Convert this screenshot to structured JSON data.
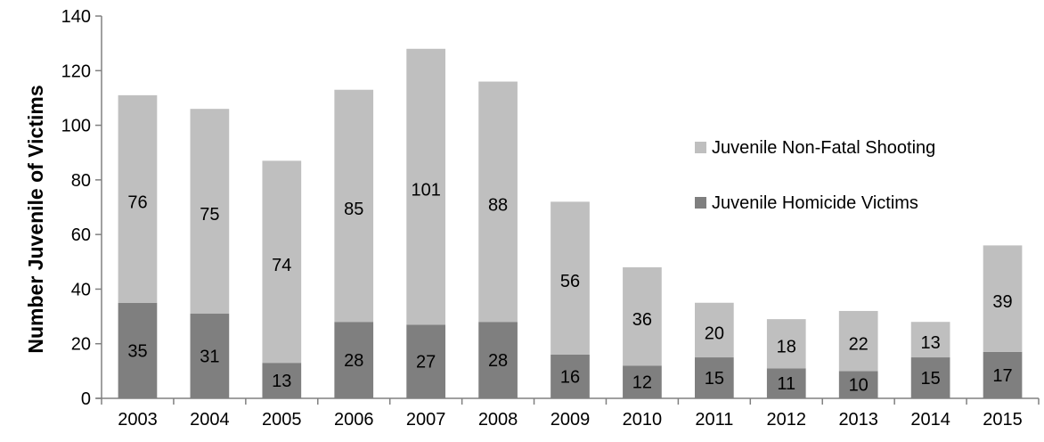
{
  "chart_data": {
    "type": "bar",
    "stacked": true,
    "categories": [
      "2003",
      "2004",
      "2005",
      "2006",
      "2007",
      "2008",
      "2009",
      "2010",
      "2011",
      "2012",
      "2013",
      "2014",
      "2015"
    ],
    "series": [
      {
        "name": "Juvenile Homicide Victims",
        "color": "#7f7f7f",
        "values": [
          35,
          31,
          13,
          28,
          27,
          28,
          16,
          12,
          15,
          11,
          10,
          15,
          17
        ]
      },
      {
        "name": "Juvenile Non-Fatal Shooting",
        "color": "#bfbfbf",
        "values": [
          76,
          75,
          74,
          85,
          101,
          88,
          56,
          36,
          20,
          18,
          22,
          13,
          39
        ]
      }
    ],
    "legend_order": [
      "Juvenile Non-Fatal Shooting",
      "Juvenile Homicide Victims"
    ],
    "legend_position": "right",
    "ylabel": "Number Juvenile of Victims",
    "xlabel": "",
    "ylim": [
      0,
      140
    ],
    "yticks": [
      0,
      20,
      40,
      60,
      80,
      100,
      120,
      140
    ],
    "grid": false
  }
}
